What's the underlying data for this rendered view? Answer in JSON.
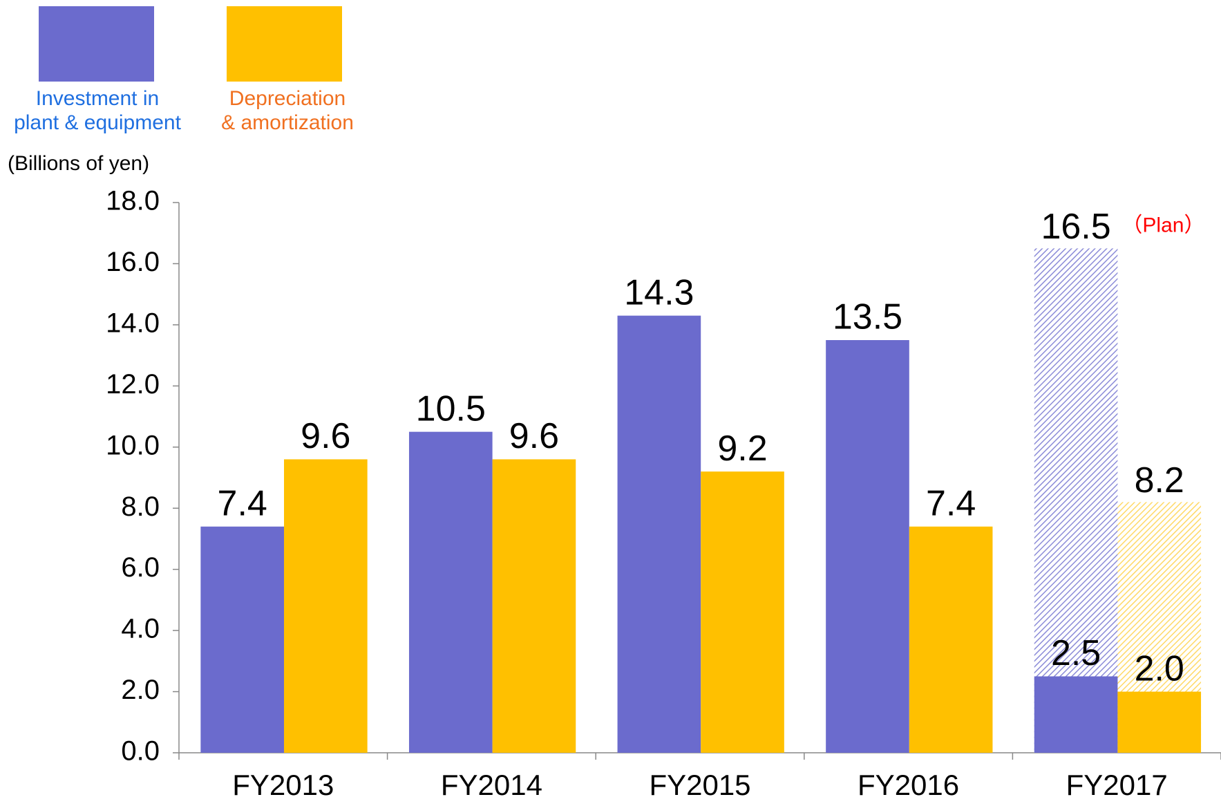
{
  "chart_data": {
    "type": "bar",
    "y_label": "(Billions of yen)",
    "categories": [
      "FY2013",
      "FY2014",
      "FY2015",
      "FY2016",
      "FY2017"
    ],
    "series": [
      {
        "name": "Investment in\nplant & equipment",
        "color": "#6b6bcd",
        "label_color": "#1f6fe0",
        "values": [
          7.4,
          10.5,
          14.3,
          13.5,
          2.5
        ],
        "value_labels": [
          "7.4",
          "10.5",
          "14.3",
          "13.5",
          "2.5"
        ]
      },
      {
        "name": "Depreciation\n& amortization",
        "color": "#ffc000",
        "label_color": "#f07020",
        "values": [
          9.6,
          9.6,
          9.2,
          7.4,
          2.0
        ],
        "value_labels": [
          "9.6",
          "9.6",
          "9.2",
          "7.4",
          "2.0"
        ]
      }
    ],
    "plan": {
      "annotation": "（Plan）",
      "annotation_color": "#ff0000",
      "hatched": true,
      "series": [
        {
          "color": "#8c8cd8",
          "values": [
            null,
            null,
            null,
            null,
            16.5
          ]
        },
        {
          "color": "#ffd966",
          "values": [
            null,
            null,
            null,
            null,
            8.2
          ]
        }
      ]
    },
    "ylim": [
      0,
      18
    ],
    "yticks": [
      {
        "value": 0,
        "label": "0.0"
      },
      {
        "value": 2,
        "label": "2.0"
      },
      {
        "value": 4,
        "label": "4.0"
      },
      {
        "value": 6,
        "label": "6.0"
      },
      {
        "value": 8,
        "label": "8.0"
      },
      {
        "value": 10,
        "label": "10.0"
      },
      {
        "value": 12,
        "label": "12.0"
      },
      {
        "value": 14,
        "label": "14.0"
      },
      {
        "value": 16,
        "label": "16.0"
      },
      {
        "value": 18,
        "label": "18.0"
      }
    ],
    "grid": false
  }
}
